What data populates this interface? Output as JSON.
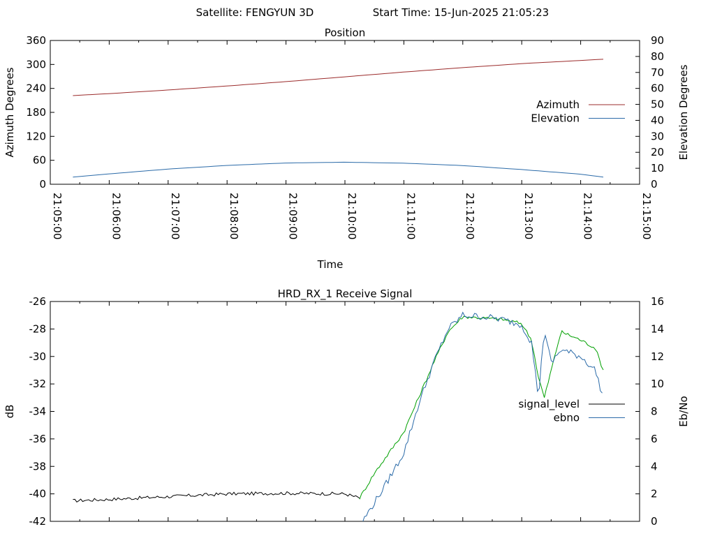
{
  "header": {
    "satellite_label": "Satellite: FENGYUN 3D",
    "start_time_label": "Start Time: 15-Jun-2025 21:05:23"
  },
  "chart_data": [
    {
      "type": "line",
      "title": "Position",
      "xlabel": "Time",
      "ylabel": "Azimuth Degrees",
      "y2label": "Elevation Degrees",
      "xlim": [
        "21:05:00",
        "21:15:00"
      ],
      "x_ticks": [
        "21:05:00",
        "21:06:00",
        "21:07:00",
        "21:08:00",
        "21:09:00",
        "21:10:00",
        "21:11:00",
        "21:12:00",
        "21:13:00",
        "21:14:00",
        "21:15:00"
      ],
      "ylim": [
        0,
        360
      ],
      "y_ticks": [
        "0",
        "60",
        "120",
        "180",
        "240",
        "300",
        "360"
      ],
      "y2lim": [
        0,
        90
      ],
      "y2_ticks": [
        "0",
        "10",
        "20",
        "30",
        "40",
        "50",
        "60",
        "70",
        "80",
        "90"
      ],
      "legend_position": "right",
      "series": [
        {
          "name": "Azimuth",
          "axis": "left",
          "color": "#9b2b2b",
          "x": [
            "21:05:23",
            "21:06:00",
            "21:07:00",
            "21:08:00",
            "21:09:00",
            "21:10:00",
            "21:11:00",
            "21:12:00",
            "21:13:00",
            "21:14:00",
            "21:14:23"
          ],
          "y": [
            222,
            227,
            236,
            246,
            257,
            269,
            281,
            292,
            302,
            310,
            313
          ]
        },
        {
          "name": "Elevation",
          "axis": "right",
          "color": "#2a6aa8",
          "x": [
            "21:05:23",
            "21:06:00",
            "21:07:00",
            "21:08:00",
            "21:09:00",
            "21:10:00",
            "21:11:00",
            "21:12:00",
            "21:13:00",
            "21:14:00",
            "21:14:23"
          ],
          "y": [
            4.5,
            6.5,
            9.5,
            11.8,
            13.3,
            13.8,
            13.2,
            11.7,
            9.2,
            6.3,
            4.5
          ]
        }
      ]
    },
    {
      "type": "line",
      "title": "HRD_RX_1 Receive Signal",
      "ylabel": "dB",
      "y2label": "Eb/No",
      "xlim": [
        "21:05:00",
        "21:15:00"
      ],
      "ylim": [
        -42,
        -26
      ],
      "y_ticks": [
        "-42",
        "-40",
        "-38",
        "-36",
        "-34",
        "-32",
        "-30",
        "-28",
        "-26"
      ],
      "y2lim": [
        0,
        16
      ],
      "y2_ticks": [
        "0",
        "2",
        "4",
        "6",
        "8",
        "10",
        "12",
        "14",
        "16"
      ],
      "legend_position": "right",
      "series": [
        {
          "name": "signal_level",
          "axis": "left",
          "color": "#000000",
          "x": [
            "21:05:23",
            "21:06:00",
            "21:07:00",
            "21:08:00",
            "21:09:00",
            "21:10:00",
            "21:10:15"
          ],
          "y": [
            -40.5,
            -40.4,
            -40.2,
            -40.0,
            -39.95,
            -40.0,
            -40.3
          ]
        },
        {
          "name": "",
          "axis": "left",
          "color": "#00a000",
          "x": [
            "21:10:15",
            "21:10:30",
            "21:11:00",
            "21:11:15",
            "21:11:30",
            "21:11:45",
            "21:12:00",
            "21:12:20",
            "21:12:40",
            "21:13:00",
            "21:13:10",
            "21:13:17",
            "21:13:23",
            "21:13:30",
            "21:13:40",
            "21:14:00",
            "21:14:15",
            "21:14:23"
          ],
          "y": [
            -40.3,
            -38.5,
            -35.5,
            -33.0,
            -30.5,
            -28.2,
            -27.1,
            -27.2,
            -27.3,
            -27.6,
            -28.8,
            -31.5,
            -33.0,
            -31.0,
            -28.2,
            -28.8,
            -29.4,
            -31.0
          ]
        },
        {
          "name": "ebno",
          "axis": "right",
          "color": "#2a6aa8",
          "x": [
            "21:10:18",
            "21:10:40",
            "21:11:00",
            "21:11:15",
            "21:11:30",
            "21:11:45",
            "21:12:00",
            "21:12:20",
            "21:12:40",
            "21:13:00",
            "21:13:10",
            "21:13:17",
            "21:13:23",
            "21:13:30",
            "21:13:40",
            "21:14:00",
            "21:14:15",
            "21:14:23"
          ],
          "y": [
            0,
            2.5,
            5.0,
            8.5,
            11.5,
            14.0,
            15.0,
            14.9,
            14.7,
            14.3,
            13.0,
            9.0,
            14.0,
            11.5,
            12.5,
            12.0,
            11.0,
            9.0
          ]
        }
      ]
    }
  ]
}
